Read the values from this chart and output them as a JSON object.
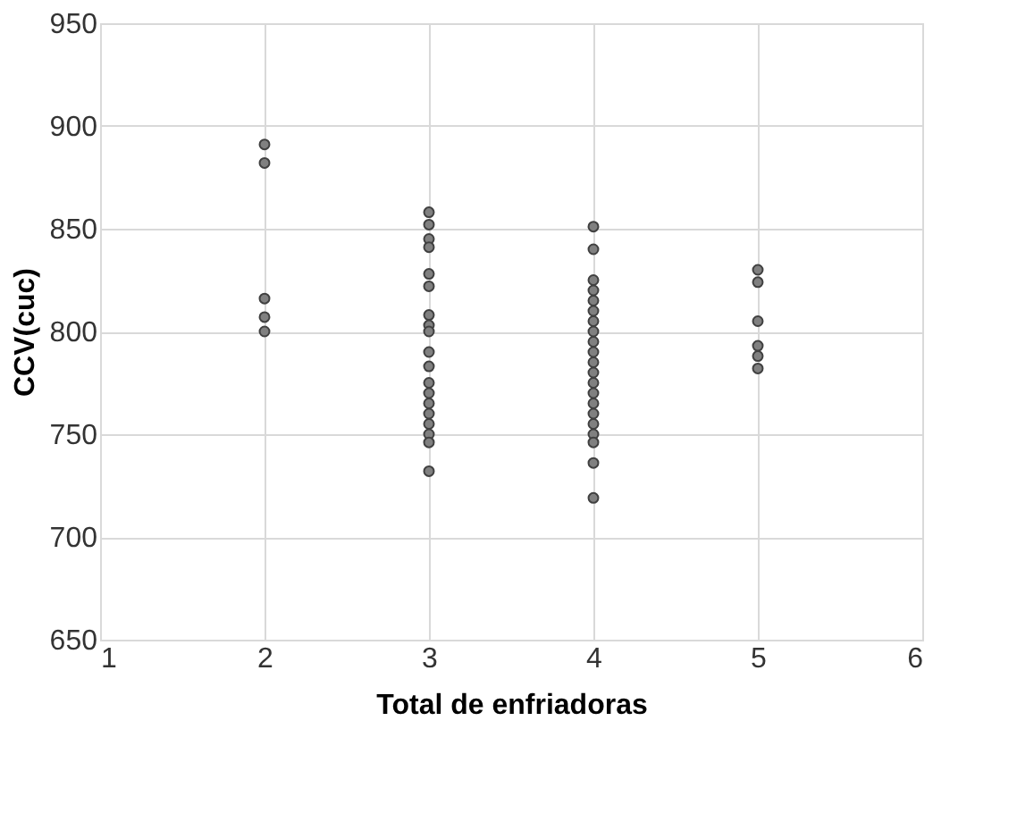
{
  "chart_data": {
    "type": "scatter",
    "xlabel": "Total de enfriadoras",
    "ylabel": "CCV(cuc)",
    "x": [
      2,
      2,
      2,
      2,
      2,
      3,
      3,
      3,
      3,
      3,
      3,
      3,
      3,
      3,
      3,
      3,
      3,
      3,
      3,
      3,
      3,
      3,
      3,
      3,
      4,
      4,
      4,
      4,
      4,
      4,
      4,
      4,
      4,
      4,
      4,
      4,
      4,
      4,
      4,
      4,
      4,
      4,
      4,
      4,
      4,
      5,
      5,
      5,
      5,
      5,
      5
    ],
    "series": [
      {
        "color": "#808080",
        "values": [
          891,
          882,
          816,
          807,
          800,
          858,
          852,
          845,
          841,
          828,
          822,
          808,
          803,
          800,
          790,
          783,
          775,
          770,
          765,
          760,
          755,
          750,
          746,
          732,
          851,
          840,
          825,
          820,
          815,
          810,
          805,
          800,
          795,
          790,
          785,
          780,
          775,
          770,
          765,
          760,
          755,
          750,
          746,
          736,
          719,
          830,
          824,
          805,
          793,
          788,
          782
        ]
      }
    ],
    "xlim": [
      1,
      6
    ],
    "xticks": [
      1,
      2,
      3,
      4,
      5,
      6
    ],
    "ylim": [
      650,
      950
    ],
    "yticks": [
      650,
      700,
      750,
      800,
      850,
      900,
      950
    ],
    "grid": true,
    "marker": "circle"
  }
}
